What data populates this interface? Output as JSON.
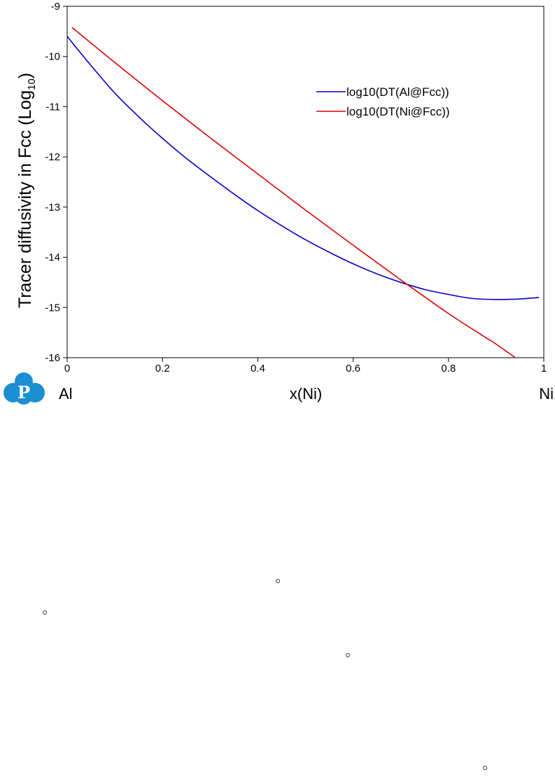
{
  "chart_data": {
    "type": "line",
    "title": "",
    "xlabel": "x(Ni)",
    "ylabel_main": "Tracer diffusivity in Fcc (Log",
    "ylabel_sub": "10",
    "ylabel_close": ")",
    "x_end_labels": {
      "left": "Al",
      "right": "Ni"
    },
    "xlim": [
      0,
      1
    ],
    "ylim": [
      -16,
      -9
    ],
    "x_ticks": [
      0,
      0.2,
      0.4,
      0.6,
      0.8,
      1
    ],
    "x_tick_labels": [
      "0",
      "0.2",
      "0.4",
      "0.6",
      "0.8",
      "1"
    ],
    "y_ticks": [
      -9,
      -10,
      -11,
      -12,
      -13,
      -14,
      -15,
      -16
    ],
    "y_tick_labels": [
      "-9",
      "-10",
      "-11",
      "-12",
      "-13",
      "-14",
      "-15",
      "-16"
    ],
    "grid": false,
    "legend_position": "top-right",
    "series": [
      {
        "name": "log10(DT(Al@Fcc))",
        "color": "#0000cc",
        "x": [
          0,
          0.05,
          0.1,
          0.15,
          0.2,
          0.25,
          0.3,
          0.35,
          0.4,
          0.45,
          0.5,
          0.55,
          0.6,
          0.65,
          0.7,
          0.75,
          0.8,
          0.85,
          0.9,
          0.95,
          0.99
        ],
        "y": [
          -9.6,
          -10.18,
          -10.73,
          -11.2,
          -11.63,
          -12.03,
          -12.39,
          -12.74,
          -13.07,
          -13.37,
          -13.65,
          -13.9,
          -14.13,
          -14.33,
          -14.5,
          -14.64,
          -14.74,
          -14.82,
          -14.84,
          -14.83,
          -14.8
        ]
      },
      {
        "name": "log10(DT(Ni@Fcc))",
        "color": "#dd0000",
        "x": [
          0.01,
          0.1,
          0.2,
          0.3,
          0.4,
          0.5,
          0.6,
          0.7,
          0.8,
          0.88,
          0.9,
          1.0
        ],
        "y": [
          -9.42,
          -10.12,
          -10.88,
          -11.62,
          -12.34,
          -13.06,
          -13.76,
          -14.45,
          -15.12,
          -15.61,
          -15.73,
          -16.4
        ]
      }
    ]
  },
  "logo": {
    "letter": "P",
    "color": "#1a8fd1"
  }
}
